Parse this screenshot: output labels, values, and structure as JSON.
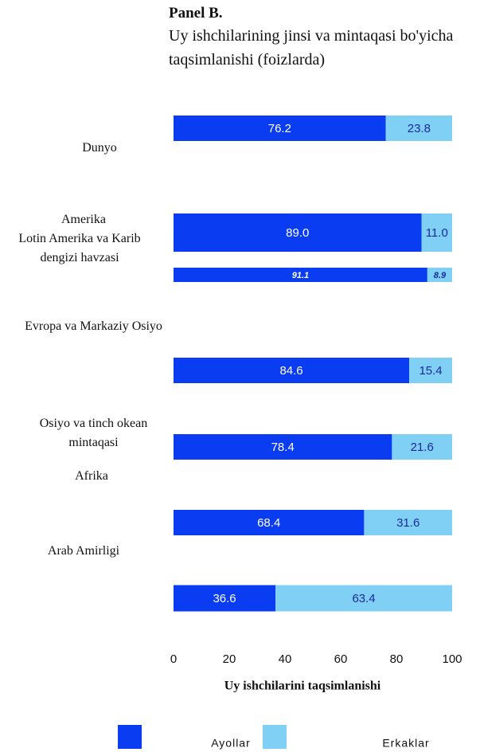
{
  "chart_data": {
    "type": "stacked-barh",
    "title": "Panel B.",
    "subtitle": "Uy ishchilarining jinsi va mintaqasi bo'yicha taqsimlanishi (foizlarda)",
    "categories": [
      "Dunyo",
      "Amerika",
      "Lotin Amerika va Karib dengizi havzasi",
      "Evropa va Markaziy Osiyo",
      "Osiyo va tinch okean mintaqasi",
      "Afrika",
      "Arab Amirligi"
    ],
    "series": [
      {
        "name": "Ayollar",
        "color": "#0a3cf2",
        "values": [
          76.2,
          89.0,
          91.1,
          84.6,
          78.4,
          68.4,
          36.6
        ],
        "value_labels": [
          "76.2",
          "89.0",
          "91.1",
          "84.6",
          "78.4",
          "68.4",
          "36.6"
        ]
      },
      {
        "name": "Erkaklar",
        "color": "#80d0f5",
        "values": [
          23.8,
          11.0,
          8.9,
          15.4,
          21.6,
          31.6,
          63.4
        ],
        "value_labels": [
          "23.8",
          "11.0",
          "8.9",
          "15.4",
          "21.6",
          "31.6",
          "63.4"
        ]
      }
    ],
    "xlabel": "Uy ishchilarini taqsimlanishi",
    "xlim": [
      0,
      100
    ],
    "xticks": [
      0,
      20,
      40,
      60,
      80,
      100
    ]
  }
}
